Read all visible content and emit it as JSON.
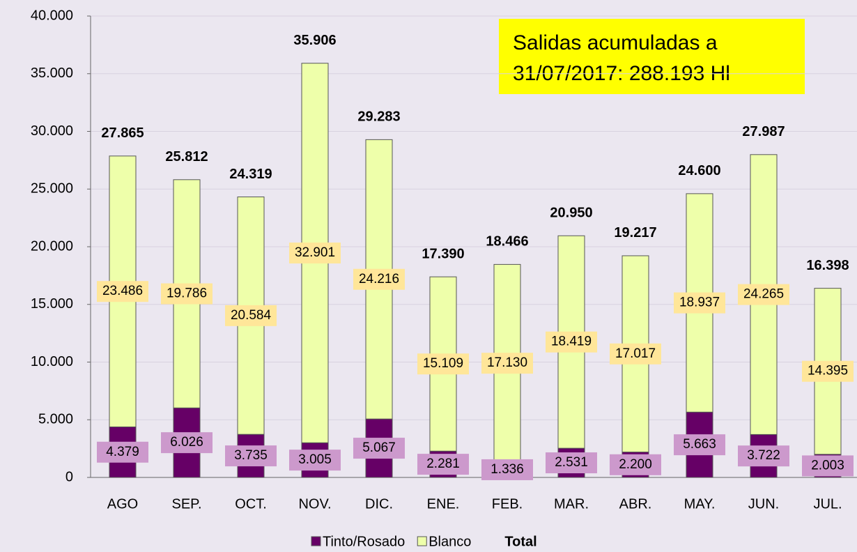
{
  "chart_data": {
    "type": "stacked_bar",
    "annotation": [
      "Salidas acumuladas a",
      "31/07/2017: 288.193 Hl"
    ],
    "categories": [
      "AGO",
      "SEP.",
      "OCT.",
      "NOV.",
      "DIC.",
      "ENE.",
      "FEB.",
      "MAR.",
      "ABR.",
      "MAY.",
      "JUN.",
      "JUL."
    ],
    "series": [
      {
        "name": "Tinto/Rosado",
        "color": "#660066",
        "label_color": "#cc99cc",
        "values": [
          4379,
          6026,
          3735,
          3005,
          5067,
          2281,
          1336,
          2531,
          2200,
          5663,
          3722,
          2003
        ],
        "value_labels": [
          "4.379",
          "6.026",
          "3.735",
          "3.005",
          "5.067",
          "2.281",
          "1.336",
          "2.531",
          "2.200",
          "5.663",
          "3.722",
          "2.003"
        ]
      },
      {
        "name": "Blanco",
        "color": "#eeffaa",
        "label_color": "#ffe699",
        "values": [
          23486,
          19786,
          20584,
          32901,
          24216,
          15109,
          17130,
          18419,
          17017,
          18937,
          24265,
          14395
        ],
        "value_labels": [
          "23.486",
          "19.786",
          "20.584",
          "32.901",
          "24.216",
          "15.109",
          "17.130",
          "18.419",
          "17.017",
          "18.937",
          "24.265",
          "14.395"
        ]
      }
    ],
    "totals": {
      "name": "Total",
      "values": [
        27865,
        25812,
        24319,
        35906,
        29283,
        17390,
        18466,
        20950,
        19217,
        24600,
        27987,
        16398
      ],
      "value_labels": [
        "27.865",
        "25.812",
        "24.319",
        "35.906",
        "29.283",
        "17.390",
        "18.466",
        "20.950",
        "19.217",
        "24.600",
        "27.987",
        "16.398"
      ]
    },
    "ylim": [
      0,
      40000
    ],
    "yticks": [
      0,
      {
        "value": 5000,
        "label": "5.000"
      },
      {
        "value": 10000,
        "label": "10.000"
      },
      {
        "value": 15000,
        "label": "15.000"
      },
      {
        "value": 20000,
        "label": "20.000"
      },
      {
        "value": 25000,
        "label": "25.000"
      },
      {
        "value": 30000,
        "label": "30.000"
      },
      {
        "value": 35000,
        "label": "35.000"
      },
      {
        "value": 40000,
        "label": "40.000"
      }
    ],
    "grid": true
  }
}
